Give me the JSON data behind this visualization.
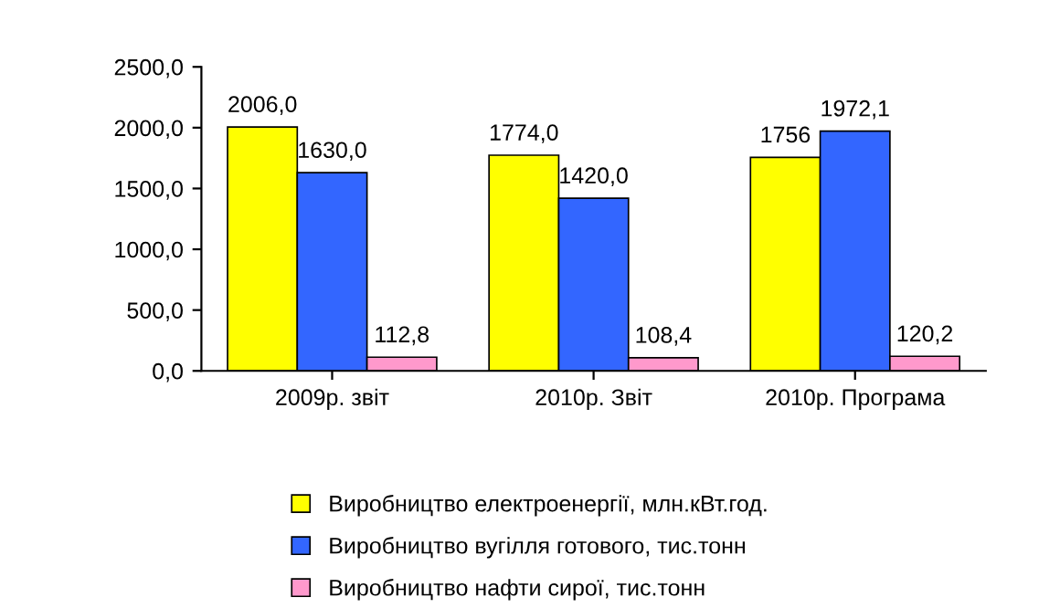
{
  "chart_data": {
    "type": "bar",
    "categories": [
      "2009р. звіт",
      "2010р. Звіт",
      "2010р. Програма"
    ],
    "series": [
      {
        "name": "Виробництво електроенергії, млн.кВт.год.",
        "color": "#ffff00",
        "values": [
          2006.0,
          1774.0,
          1756
        ],
        "value_labels": [
          "2006,0",
          "1774,0",
          "1756"
        ]
      },
      {
        "name": "Виробництво вугілля готового, тис.тонн",
        "color": "#3366ff",
        "values": [
          1630.0,
          1420.0,
          1972.1
        ],
        "value_labels": [
          "1630,0",
          "1420,0",
          "1972,1"
        ]
      },
      {
        "name": "Виробництво нафти сирої, тис.тонн",
        "color": "#ff99cc",
        "values": [
          112.8,
          108.4,
          120.2
        ],
        "value_labels": [
          "112,8",
          "108,4",
          "120,2"
        ]
      }
    ],
    "ylim": [
      0,
      2500
    ],
    "yticks": [
      {
        "value": 0,
        "label": "0,0"
      },
      {
        "value": 500,
        "label": "500,0"
      },
      {
        "value": 1000,
        "label": "1000,0"
      },
      {
        "value": 1500,
        "label": "1500,0"
      },
      {
        "value": 2000,
        "label": "2000,0"
      },
      {
        "value": 2500,
        "label": "2500,0"
      }
    ],
    "grid": false,
    "legend": "bottom"
  }
}
